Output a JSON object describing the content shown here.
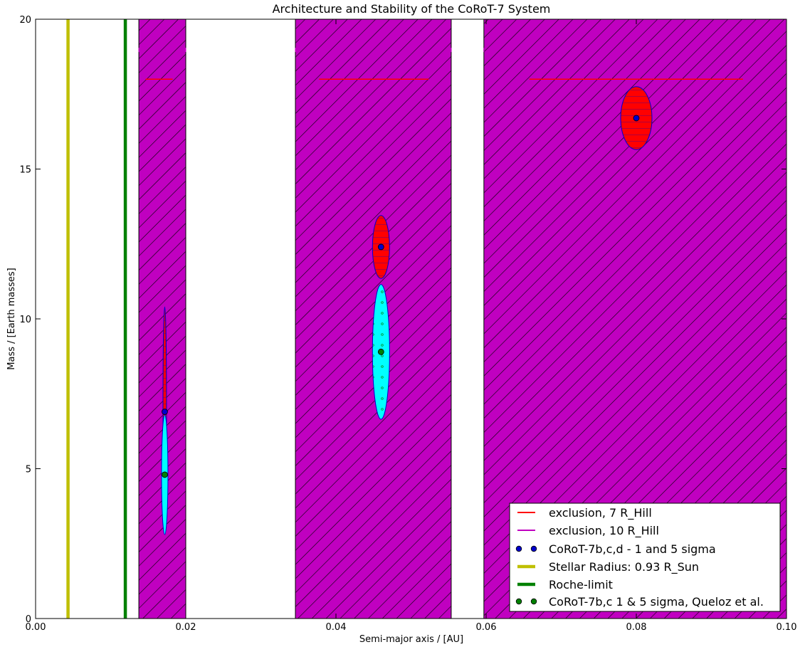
{
  "chart_data": {
    "type": "scatter",
    "title": "Architecture and Stability of the CoRoT-7 System",
    "xlabel": "Semi-major axis / [AU]",
    "ylabel": "Mass / [Earth masses]",
    "xlim": [
      0.0,
      0.1
    ],
    "ylim": [
      0,
      20
    ],
    "xticks": [
      "0.00",
      "0.02",
      "0.04",
      "0.06",
      "0.08",
      "0.10"
    ],
    "yticks": [
      "0",
      "5",
      "10",
      "15",
      "20"
    ],
    "xtick_values": [
      0.0,
      0.02,
      0.04,
      0.06,
      0.08,
      0.1
    ],
    "ytick_values": [
      0,
      5,
      10,
      15,
      20
    ],
    "grid": false,
    "legend_position": "lower-right",
    "colors": {
      "exclusion_fill": "#c000c0",
      "hill7": "#ff0000",
      "hill10": "#c000c0",
      "sigma_fill": "#ff0000",
      "sigma_edge": "#0000cc",
      "queloz_fill": "#00ffff",
      "queloz_point": "#008000",
      "planet_point": "#0000cc",
      "stellar": "#bfbf00",
      "roche": "#008000"
    },
    "vertical_lines": [
      {
        "name": "Stellar Radius: 0.93 R_Sun",
        "x": 0.00432,
        "color": "#bfbf00"
      },
      {
        "name": "Roche-limit",
        "x": 0.01195,
        "color": "#008000"
      }
    ],
    "exclusion_zones_10_hill": [
      {
        "x_min": 0.01375,
        "x_max": 0.02
      },
      {
        "x_min": 0.0346,
        "x_max": 0.05535
      },
      {
        "x_min": 0.0597,
        "x_max": 0.1
      }
    ],
    "exclusion_7_hill": [
      {
        "x_min": 0.01465,
        "x_max": 0.01825,
        "y": 18.0
      },
      {
        "x_min": 0.03775,
        "x_max": 0.05235,
        "y": 18.0
      },
      {
        "x_min": 0.06575,
        "x_max": 0.0942,
        "y": 18.0
      }
    ],
    "exclusion_10_hill_ticks": {
      "y": 19.0
    },
    "planets": [
      {
        "a": 0.0172,
        "mass": 6.9,
        "mass_err_5sigma": 3.5
      },
      {
        "a": 0.046,
        "mass": 12.4,
        "mass_err_5sigma": 1.05
      },
      {
        "a": 0.08,
        "mass": 16.7,
        "mass_err_5sigma": 1.05
      }
    ],
    "queloz_planets": [
      {
        "a": 0.0172,
        "mass": 4.8,
        "mass_err_5sigma": 2.0
      },
      {
        "a": 0.046,
        "mass": 8.9,
        "mass_err_5sigma": 2.25
      }
    ],
    "legend": [
      {
        "label": "exclusion, 7 R_Hill",
        "kind": "line",
        "color": "#ff0000"
      },
      {
        "label": "exclusion, 10 R_Hill",
        "kind": "line",
        "color": "#c000c0"
      },
      {
        "label": "CoRoT-7b,c,d - 1 and 5 sigma",
        "kind": "points",
        "color": "#0000cc"
      },
      {
        "label": "Stellar Radius: 0.93 R_Sun",
        "kind": "thickline",
        "color": "#bfbf00"
      },
      {
        "label": "Roche-limit",
        "kind": "thickline",
        "color": "#008000"
      },
      {
        "label": "CoRoT-7b,c 1 & 5 sigma, Queloz et al.",
        "kind": "points",
        "color": "#008000"
      }
    ]
  }
}
